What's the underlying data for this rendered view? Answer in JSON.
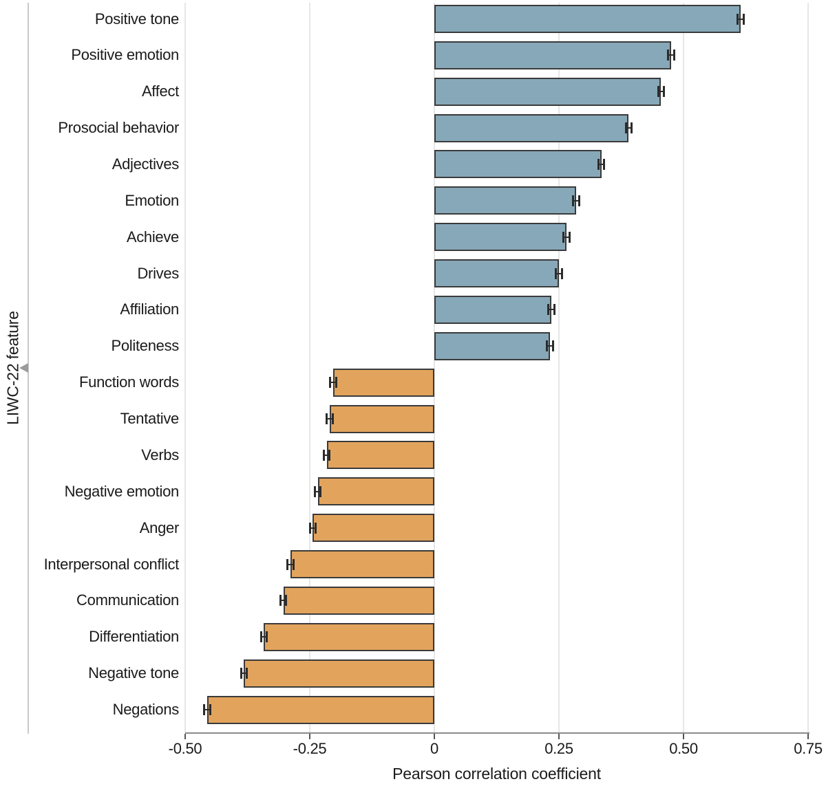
{
  "figure": {
    "kind": "horizontal-bar-chart-with-error-bars"
  },
  "chart_data": {
    "type": "bar",
    "orientation": "horizontal",
    "title": "",
    "xlabel": "Pearson correlation coefficient",
    "ylabel": "LIWC-22 feature",
    "categories": [
      "Positive tone",
      "Positive emotion",
      "Affect",
      "Prosocial behavior",
      "Adjectives",
      "Emotion",
      "Achieve",
      "Drives",
      "Affiliation",
      "Politeness",
      "Function words",
      "Tentative",
      "Verbs",
      "Negative emotion",
      "Anger",
      "Interpersonal conflict",
      "Communication",
      "Differentiation",
      "Negative tone",
      "Negations"
    ],
    "values": [
      0.615,
      0.475,
      0.455,
      0.39,
      0.335,
      0.285,
      0.265,
      0.25,
      0.235,
      0.232,
      -0.203,
      -0.21,
      -0.216,
      -0.234,
      -0.244,
      -0.289,
      -0.303,
      -0.342,
      -0.382,
      -0.456
    ],
    "ci_halfwidth": [
      0.006,
      0.006,
      0.006,
      0.006,
      0.006,
      0.006,
      0.006,
      0.006,
      0.006,
      0.006,
      0.006,
      0.006,
      0.006,
      0.006,
      0.006,
      0.006,
      0.006,
      0.006,
      0.006,
      0.006
    ],
    "x_ticks": [
      {
        "value": -0.5,
        "label": "-0.50"
      },
      {
        "value": -0.25,
        "label": "-0.25"
      },
      {
        "value": 0,
        "label": "0"
      },
      {
        "value": 0.25,
        "label": "0.25"
      },
      {
        "value": 0.5,
        "label": "0.50"
      },
      {
        "value": 0.75,
        "label": "0.75"
      }
    ],
    "xlim": [
      -0.5,
      0.75
    ],
    "grid": "vertical-light-gray",
    "legend": "none",
    "colors": {
      "positive_bar": "#87a8b8",
      "negative_bar": "#e2a45d",
      "bar_border": "#3a3a3a",
      "error_bar": "#2b2b2b",
      "gridline": "#e6e6e6",
      "y_axis_line": "#c9c9c9",
      "x_axis_line": "#8a8a8a",
      "tick_mark": "#555555",
      "text": "#1a1a1a",
      "axis_arrow": "#9b9b9b",
      "background": "#ffffff"
    },
    "icons": [
      {
        "name": "y-axis-arrow-icon",
        "shape": "left-pointing-triangle"
      }
    ]
  }
}
